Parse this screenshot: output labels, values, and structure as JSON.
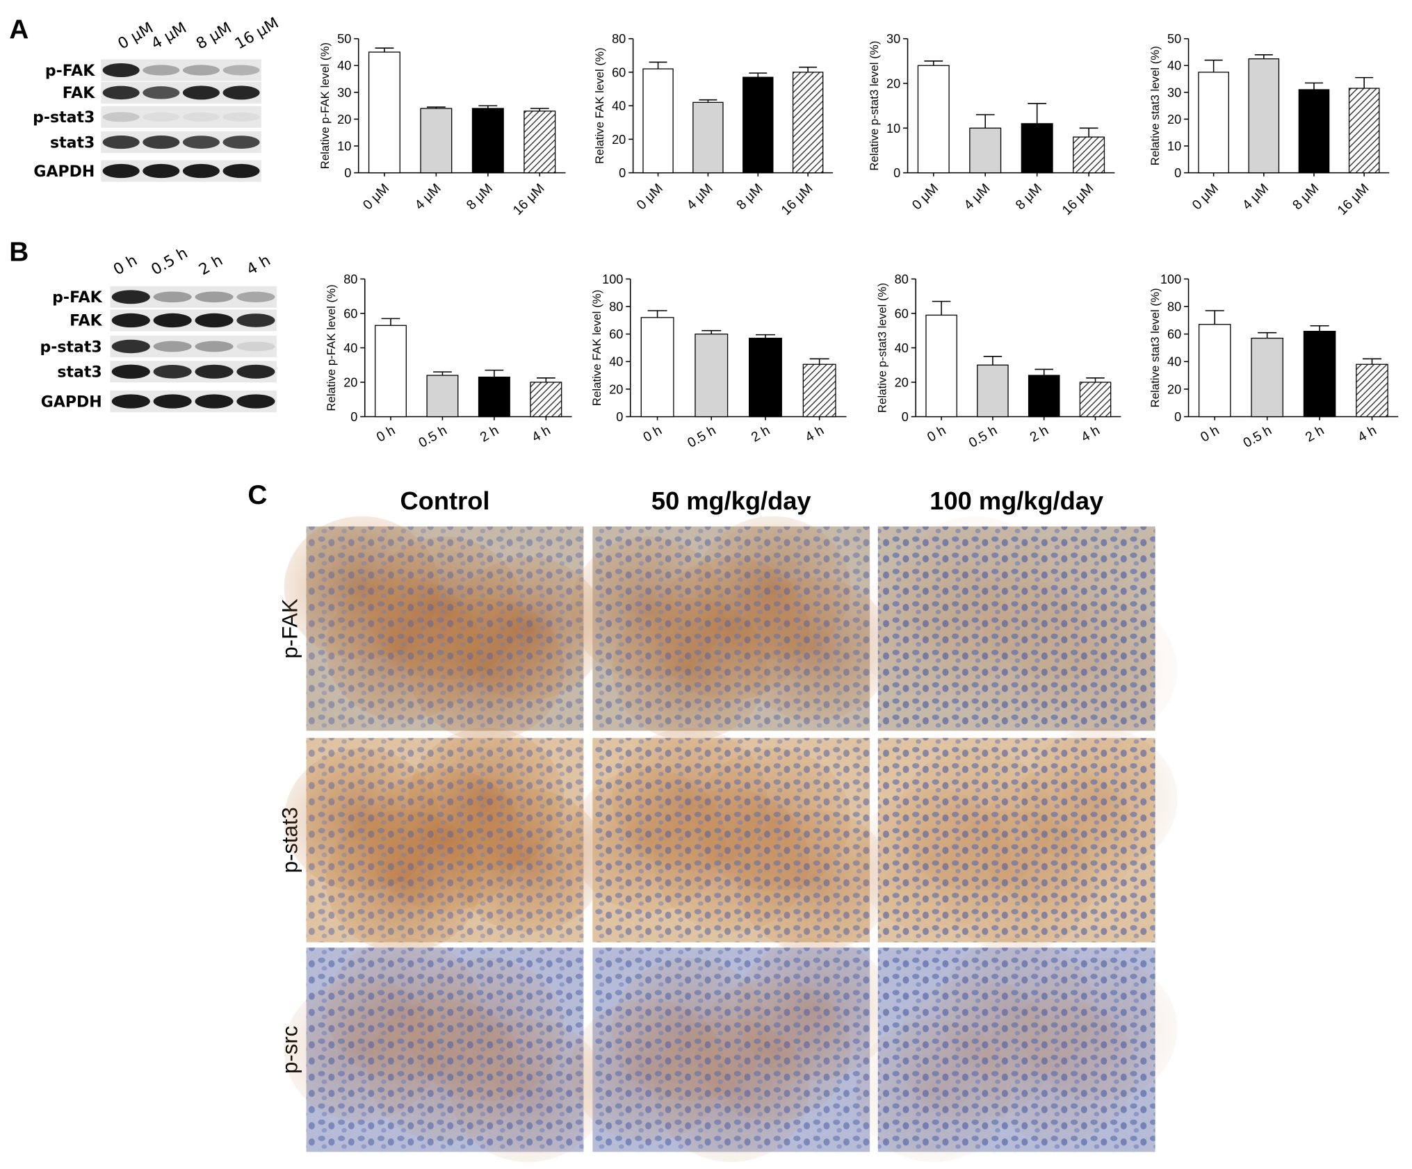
{
  "chart_data": [
    {
      "type": "bar",
      "ylabel": "Relative p-FAK level (%)",
      "categories": [
        "0 μM",
        "4 μM",
        "8 μM",
        "16 μM"
      ],
      "values": [
        45,
        24,
        24,
        23
      ],
      "errors": [
        1.5,
        0.5,
        1,
        1
      ],
      "ylim": [
        0,
        50
      ],
      "yticks": [
        0,
        10,
        20,
        30,
        40,
        50
      ]
    },
    {
      "type": "bar",
      "ylabel": "Relative FAK level (%)",
      "categories": [
        "0 μM",
        "4 μM",
        "8 μM",
        "16 μM"
      ],
      "values": [
        62,
        42,
        57,
        60
      ],
      "errors": [
        4,
        1.5,
        2.5,
        3
      ],
      "ylim": [
        0,
        80
      ],
      "yticks": [
        0,
        20,
        40,
        60,
        80
      ]
    },
    {
      "type": "bar",
      "ylabel": "Relative p-stat3 level (%)",
      "categories": [
        "0 μM",
        "4 μM",
        "8 μM",
        "16 μM"
      ],
      "values": [
        24,
        10,
        11,
        8
      ],
      "errors": [
        1,
        3,
        4.5,
        2
      ],
      "ylim": [
        0,
        30
      ],
      "yticks": [
        0,
        10,
        20,
        30
      ]
    },
    {
      "type": "bar",
      "ylabel": "Relative stat3 level (%)",
      "categories": [
        "0 μM",
        "4 μM",
        "8 μM",
        "16 μM"
      ],
      "values": [
        37.5,
        42.5,
        31,
        31.5
      ],
      "errors": [
        4.5,
        1.5,
        2.5,
        4
      ],
      "ylim": [
        0,
        50
      ],
      "yticks": [
        0,
        10,
        20,
        30,
        40,
        50
      ]
    },
    {
      "type": "bar",
      "ylabel": "Relative p-FAK level (%)",
      "categories": [
        "0 h",
        "0.5 h",
        "2 h",
        "4 h"
      ],
      "values": [
        53,
        24,
        23,
        20
      ],
      "errors": [
        4,
        2,
        4,
        2.5
      ],
      "ylim": [
        0,
        80
      ],
      "yticks": [
        0,
        20,
        40,
        60,
        80
      ]
    },
    {
      "type": "bar",
      "ylabel": "Relative FAK level (%)",
      "categories": [
        "0 h",
        "0.5 h",
        "2 h",
        "4 h"
      ],
      "values": [
        72,
        60,
        57,
        38
      ],
      "errors": [
        5,
        2.5,
        2.5,
        4
      ],
      "ylim": [
        0,
        100
      ],
      "yticks": [
        0,
        20,
        40,
        60,
        80,
        100
      ]
    },
    {
      "type": "bar",
      "ylabel": "Relative p-stat3 level (%)",
      "categories": [
        "0 h",
        "0.5 h",
        "2 h",
        "4 h"
      ],
      "values": [
        59,
        30,
        24,
        20
      ],
      "errors": [
        8,
        5,
        3.5,
        2.5
      ],
      "ylim": [
        0,
        80
      ],
      "yticks": [
        0,
        20,
        40,
        60,
        80
      ]
    },
    {
      "type": "bar",
      "ylabel": "Relative stat3 level (%)",
      "categories": [
        "0 h",
        "0.5 h",
        "2 h",
        "4 h"
      ],
      "values": [
        67,
        57,
        62,
        38
      ],
      "errors": [
        10,
        4,
        4,
        4
      ],
      "ylim": [
        0,
        100
      ],
      "yticks": [
        0,
        20,
        40,
        60,
        80,
        100
      ]
    }
  ],
  "bar_style": {
    "colors": [
      "#ffffff",
      "#d4d4d4",
      "#000000",
      "#ffffff"
    ],
    "hatched": [
      false,
      false,
      false,
      true
    ]
  },
  "panels": {
    "a": {
      "letter": "A",
      "lanes": [
        "0 μM",
        "4 μM",
        "8 μM",
        "16 μM"
      ],
      "bands": [
        "p-FAK",
        "FAK",
        "p-stat3",
        "stat3",
        "GAPDH"
      ]
    },
    "b": {
      "letter": "B",
      "lanes": [
        "0 h",
        "0.5 h",
        "2 h",
        "4 h"
      ],
      "bands": [
        "p-FAK",
        "FAK",
        "p-stat3",
        "stat3",
        "GAPDH"
      ]
    },
    "c": {
      "letter": "C",
      "columns": [
        "Control",
        "50 mg/kg/day",
        "100 mg/kg/day"
      ],
      "rows": [
        "p-FAK",
        "p-stat3",
        "p-src"
      ]
    }
  }
}
